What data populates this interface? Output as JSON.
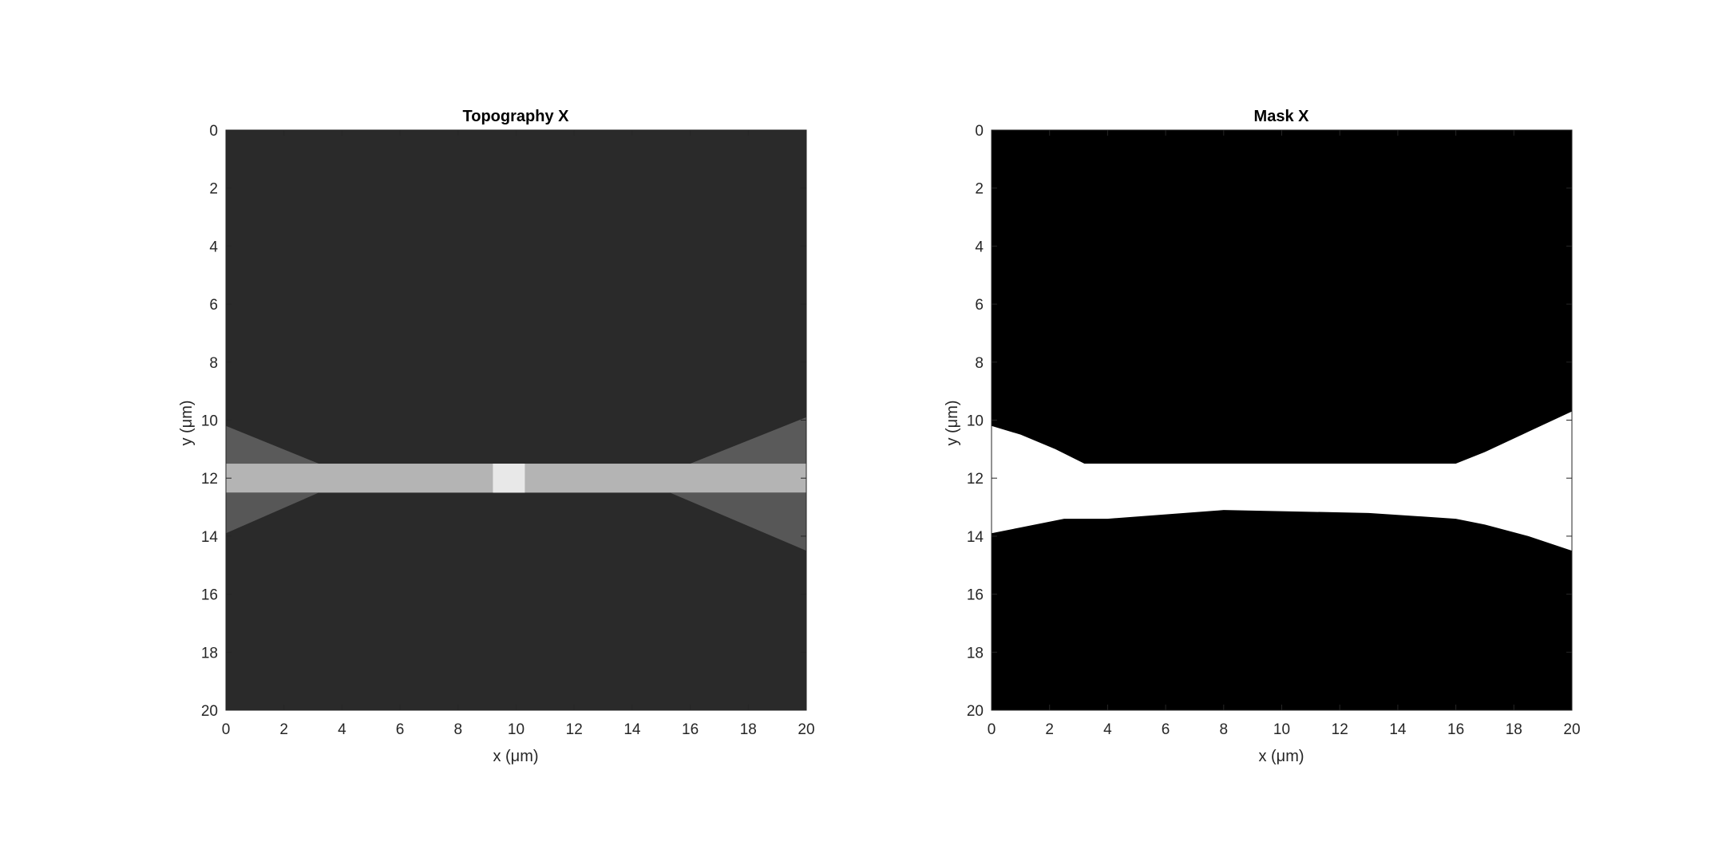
{
  "chart_data": [
    {
      "type": "heatmap",
      "title": "Topography X",
      "xlabel": "x (μm)",
      "ylabel": "y (μm)",
      "xlim": [
        0,
        20
      ],
      "ylim": [
        0,
        20
      ],
      "y_direction": "reversed",
      "xticks": [
        0,
        2,
        4,
        6,
        8,
        10,
        12,
        14,
        16,
        18,
        20
      ],
      "yticks": [
        0,
        2,
        4,
        6,
        8,
        10,
        12,
        14,
        16,
        18,
        20
      ],
      "colormap": "gray",
      "grid": false,
      "features": {
        "background_gray": "#2a2a2a",
        "upper_taper": {
          "y_left": 10.2,
          "y_right": 9.9,
          "y_inner": 11.5,
          "x_inner_left": 3.2,
          "x_inner_right": 16.0,
          "gray": "#5a5a5a"
        },
        "waveguide": {
          "y_top": 11.5,
          "y_bottom": 12.5,
          "gray": "#b4b4b4"
        },
        "lower_taper": {
          "y_inner": 12.5,
          "y_left": 13.9,
          "y_right": 14.5,
          "x_inner_left": 3.2,
          "x_inner_right": 15.3,
          "gray": "#575757"
        },
        "central_feature": {
          "x_left": 9.2,
          "x_right": 10.3,
          "y_top": 11.5,
          "y_bottom": 12.5,
          "gray": "#e8e8e8"
        }
      }
    },
    {
      "type": "heatmap",
      "title": "Mask X",
      "xlabel": "x (μm)",
      "ylabel": "y (μm)",
      "xlim": [
        0,
        20
      ],
      "ylim": [
        0,
        20
      ],
      "y_direction": "reversed",
      "xticks": [
        0,
        2,
        4,
        6,
        8,
        10,
        12,
        14,
        16,
        18,
        20
      ],
      "yticks": [
        0,
        2,
        4,
        6,
        8,
        10,
        12,
        14,
        16,
        18,
        20
      ],
      "colormap": "binary",
      "grid": false,
      "features": {
        "background": "#000000",
        "mask": "#ffffff",
        "top_boundary": [
          [
            0,
            10.2
          ],
          [
            1.0,
            10.5
          ],
          [
            2.2,
            11.0
          ],
          [
            3.2,
            11.5
          ],
          [
            16.0,
            11.5
          ],
          [
            17.0,
            11.1
          ],
          [
            18.5,
            10.4
          ],
          [
            20,
            9.7
          ]
        ],
        "bottom_boundary": [
          [
            20,
            14.5
          ],
          [
            18.5,
            14.0
          ],
          [
            17.0,
            13.6
          ],
          [
            16.0,
            13.4
          ],
          [
            13.0,
            13.2
          ],
          [
            8.0,
            13.1
          ],
          [
            4.0,
            13.4
          ],
          [
            2.5,
            13.4
          ],
          [
            1.0,
            13.7
          ],
          [
            0,
            13.9
          ]
        ]
      }
    }
  ]
}
